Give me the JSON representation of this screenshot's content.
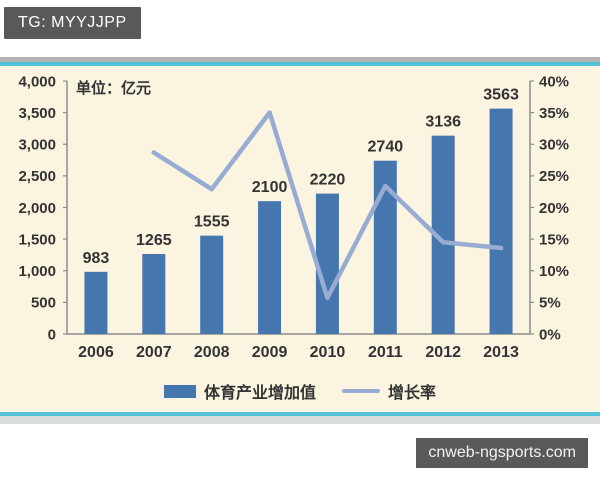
{
  "watermarks": {
    "tg_label": "TG: MYYJJPP",
    "site_label": "cnweb-ngsports.com"
  },
  "colors": {
    "bar_blue": "#4576ae",
    "line_blue": "#97abd3",
    "chart_background": "#fbf4e0",
    "separator_cyan": "#52c2d7",
    "separator_gray": "#b3b3b3",
    "badge_gray": "#595959",
    "axis_line": "#8c8c8c",
    "text_dark": "#333333"
  },
  "chart_data": {
    "type": "bar",
    "subtype": "bar-with-line",
    "unit_label": "单位：亿元",
    "categories": [
      "2006",
      "2007",
      "2008",
      "2009",
      "2010",
      "2011",
      "2012",
      "2013"
    ],
    "series": [
      {
        "name": "体育产业增加值",
        "type": "bar",
        "axis": "left",
        "color": "#4576ae",
        "values": [
          983,
          1265,
          1555,
          2100,
          2220,
          2740,
          3136,
          3563
        ]
      },
      {
        "name": "增长率",
        "type": "line",
        "axis": "right",
        "color": "#97abd3",
        "values": [
          null,
          28.7,
          22.9,
          35.0,
          5.7,
          23.4,
          14.5,
          13.6
        ]
      }
    ],
    "bar_value_labels": [
      "983",
      "1265",
      "1555",
      "2100",
      "2220",
      "2740",
      "3136",
      "3563"
    ],
    "left_axis": {
      "min": 0,
      "max": 4000,
      "step": 500,
      "tick_labels": [
        "0",
        "500",
        "1,000",
        "1,500",
        "2,000",
        "2,500",
        "3,000",
        "3,500",
        "4,000"
      ]
    },
    "right_axis": {
      "min": 0,
      "max": 40,
      "step": 5,
      "tick_labels": [
        "0%",
        "5%",
        "10%",
        "15%",
        "20%",
        "25%",
        "30%",
        "35%",
        "40%"
      ]
    },
    "legend": [
      "体育产业增加值",
      "增长率"
    ],
    "legend_position": "bottom",
    "grid": false
  }
}
